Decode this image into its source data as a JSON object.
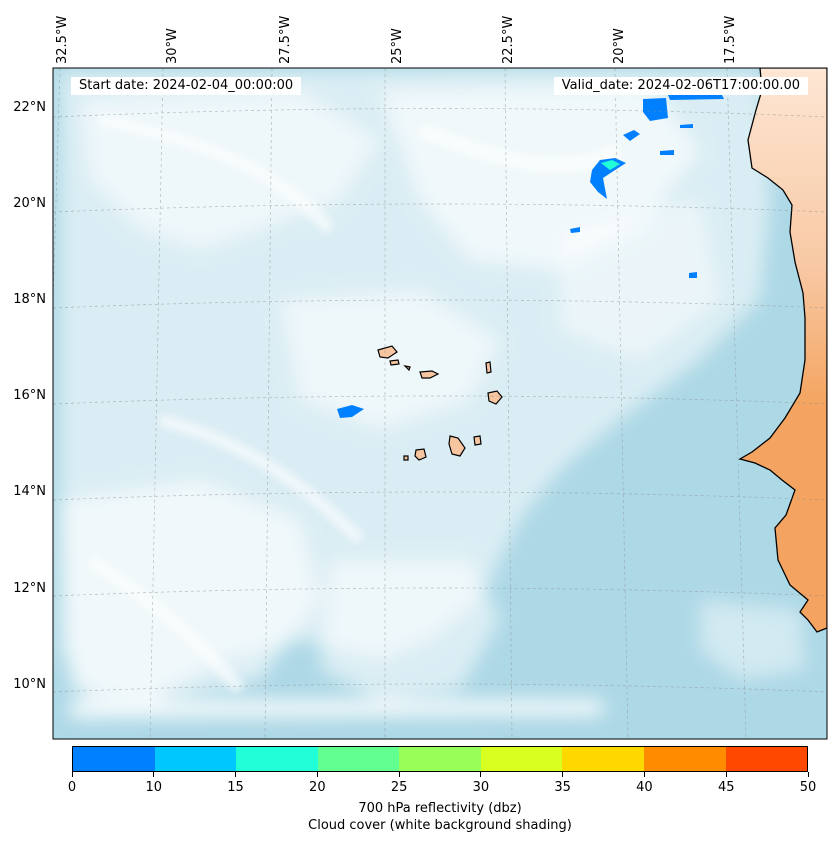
{
  "map": {
    "lon_labels": [
      "32.5°W",
      "30°W",
      "27.5°W",
      "25°W",
      "22.5°W",
      "20°W",
      "17.5°W"
    ],
    "lat_labels": [
      "22°N",
      "20°N",
      "18°N",
      "16°N",
      "14°N",
      "12°N",
      "10°N"
    ],
    "start_date": "Start date: 2024-02-04_00:00:00",
    "valid_date": "Valid_date: 2024-02-06T17:00:00.00",
    "colors": {
      "ocean": "#add8e6",
      "cloud": "#ffffff",
      "land": "#f4a460",
      "islands": "#f7c59f",
      "coastline": "#000000",
      "reflectivity_echo": "#0080ff"
    }
  },
  "colorbar": {
    "ticks": [
      "0",
      "10",
      "15",
      "20",
      "25",
      "30",
      "35",
      "40",
      "45",
      "50"
    ],
    "colors": [
      "#0080ff",
      "#00c8ff",
      "#20ffd8",
      "#60ff90",
      "#98ff58",
      "#d8ff20",
      "#ffd800",
      "#ff8c00",
      "#ff4800"
    ],
    "label_line1": "700 hPa reflectivity (dbz)",
    "label_line2": "Cloud cover (white background shading)"
  }
}
